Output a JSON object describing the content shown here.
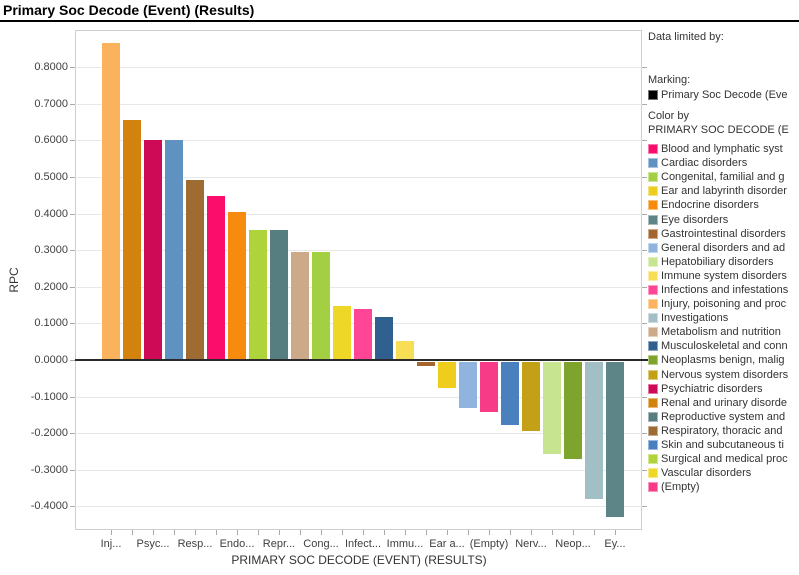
{
  "header": {
    "title": "Primary Soc Decode (Event) (Results)"
  },
  "legend": {
    "data_limited_by_label": "Data limited by:",
    "marking_label": "Marking:",
    "marking_item": {
      "label": "Primary Soc Decode (Eve",
      "color": "#000000"
    },
    "color_by_label": "Color by",
    "color_by_value": "PRIMARY SOC DECODE (E",
    "items": [
      {
        "label": "Blood and lymphatic syst",
        "color": "#fb0d6c"
      },
      {
        "label": "Cardiac disorders",
        "color": "#5f92c1"
      },
      {
        "label": "Congenital, familial and g",
        "color": "#a3cf42"
      },
      {
        "label": "Ear and labyrinth disorder",
        "color": "#efcd1d"
      },
      {
        "label": "Endocrine disorders",
        "color": "#f68b0e"
      },
      {
        "label": "Eye disorders",
        "color": "#5d8588"
      },
      {
        "label": "Gastrointestinal disorders",
        "color": "#a5662e"
      },
      {
        "label": "General disorders and ad",
        "color": "#8fb4de"
      },
      {
        "label": "Hepatobiliary disorders",
        "color": "#c7e590"
      },
      {
        "label": "Immune system disorders",
        "color": "#f7de55"
      },
      {
        "label": "Infections and infestations",
        "color": "#ff4596"
      },
      {
        "label": "Injury, poisoning and proc",
        "color": "#fbb25c"
      },
      {
        "label": "Investigations",
        "color": "#a3bfc6"
      },
      {
        "label": "Metabolism and nutrition",
        "color": "#cca988"
      },
      {
        "label": "Musculoskeletal and conn",
        "color": "#2f608f"
      },
      {
        "label": "Neoplasms benign, malig",
        "color": "#7fa42d"
      },
      {
        "label": "Nervous system disorders",
        "color": "#c3a016"
      },
      {
        "label": "Psychiatric disorders",
        "color": "#ce0a56"
      },
      {
        "label": "Renal and urinary disorde",
        "color": "#d1830d"
      },
      {
        "label": "Reproductive system and",
        "color": "#567e81"
      },
      {
        "label": "Respiratory, thoracic and",
        "color": "#9e6b32"
      },
      {
        "label": "Skin and subcutaneous ti",
        "color": "#4a80be"
      },
      {
        "label": "Surgical and medical proc",
        "color": "#afd33a"
      },
      {
        "label": "Vascular disorders",
        "color": "#eed727"
      },
      {
        "label": "(Empty)",
        "color": "#f73b87"
      }
    ]
  },
  "chart_data": {
    "type": "bar",
    "title": "Primary Soc Decode (Event) (Results)",
    "xlabel": "PRIMARY SOC DECODE (EVENT) (RESULTS)",
    "ylabel": "RPC",
    "ylim": [
      -0.464,
      0.902
    ],
    "grid": true,
    "legend_position": "right",
    "yticks": [
      {
        "value": 0.8,
        "label": "0.8000"
      },
      {
        "value": 0.7,
        "label": "0.7000"
      },
      {
        "value": 0.6,
        "label": "0.6000"
      },
      {
        "value": 0.5,
        "label": "0.5000"
      },
      {
        "value": 0.4,
        "label": "0.4000"
      },
      {
        "value": 0.3,
        "label": "0.3000"
      },
      {
        "value": 0.2,
        "label": "0.2000"
      },
      {
        "value": 0.1,
        "label": "0.1000"
      },
      {
        "value": 0.0,
        "label": "0.0000"
      },
      {
        "value": -0.1,
        "label": "-0.1000"
      },
      {
        "value": -0.2,
        "label": "-0.2000"
      },
      {
        "value": -0.3,
        "label": "-0.3000"
      },
      {
        "value": -0.4,
        "label": "-0.4000"
      }
    ],
    "categories": [
      "Injury, poisoning and proc",
      "Renal and urinary disorde",
      "Psychiatric disorders",
      "Cardiac disorders",
      "Respiratory, thoracic and",
      "Blood and lymphatic syst",
      "Endocrine disorders",
      "Surgical and medical proc",
      "Reproductive system and",
      "Metabolism and nutrition",
      "Congenital, familial and g",
      "Vascular disorders",
      "Infections and infestations",
      "Musculoskeletal and conn",
      "Immune system disorders",
      "Gastrointestinal disorders",
      "Ear and labyrinth disorder",
      "General disorders and ad",
      "(Empty)",
      "Skin and subcutaneous ti",
      "Nervous system disorders",
      "Hepatobiliary disorders",
      "Neoplasms benign, malig",
      "Investigations",
      "Eye disorders"
    ],
    "values": [
      0.865,
      0.655,
      0.601,
      0.6,
      0.491,
      0.449,
      0.403,
      0.355,
      0.354,
      0.295,
      0.295,
      0.148,
      0.138,
      0.117,
      0.053,
      -0.011,
      -0.07,
      -0.126,
      -0.137,
      -0.172,
      -0.188,
      -0.252,
      -0.264,
      -0.373,
      -0.423
    ],
    "bar_axis_labels": [
      "Inj...",
      "",
      "Psyc...",
      "",
      "Resp...",
      "",
      "Endo...",
      "",
      "Repr...",
      "",
      "Cong...",
      "",
      "Infect...",
      "",
      "Immu...",
      "",
      "Ear a...",
      "",
      "(Empty)",
      "",
      "Nerv...",
      "",
      "Neop...",
      "",
      "Ey..."
    ]
  }
}
